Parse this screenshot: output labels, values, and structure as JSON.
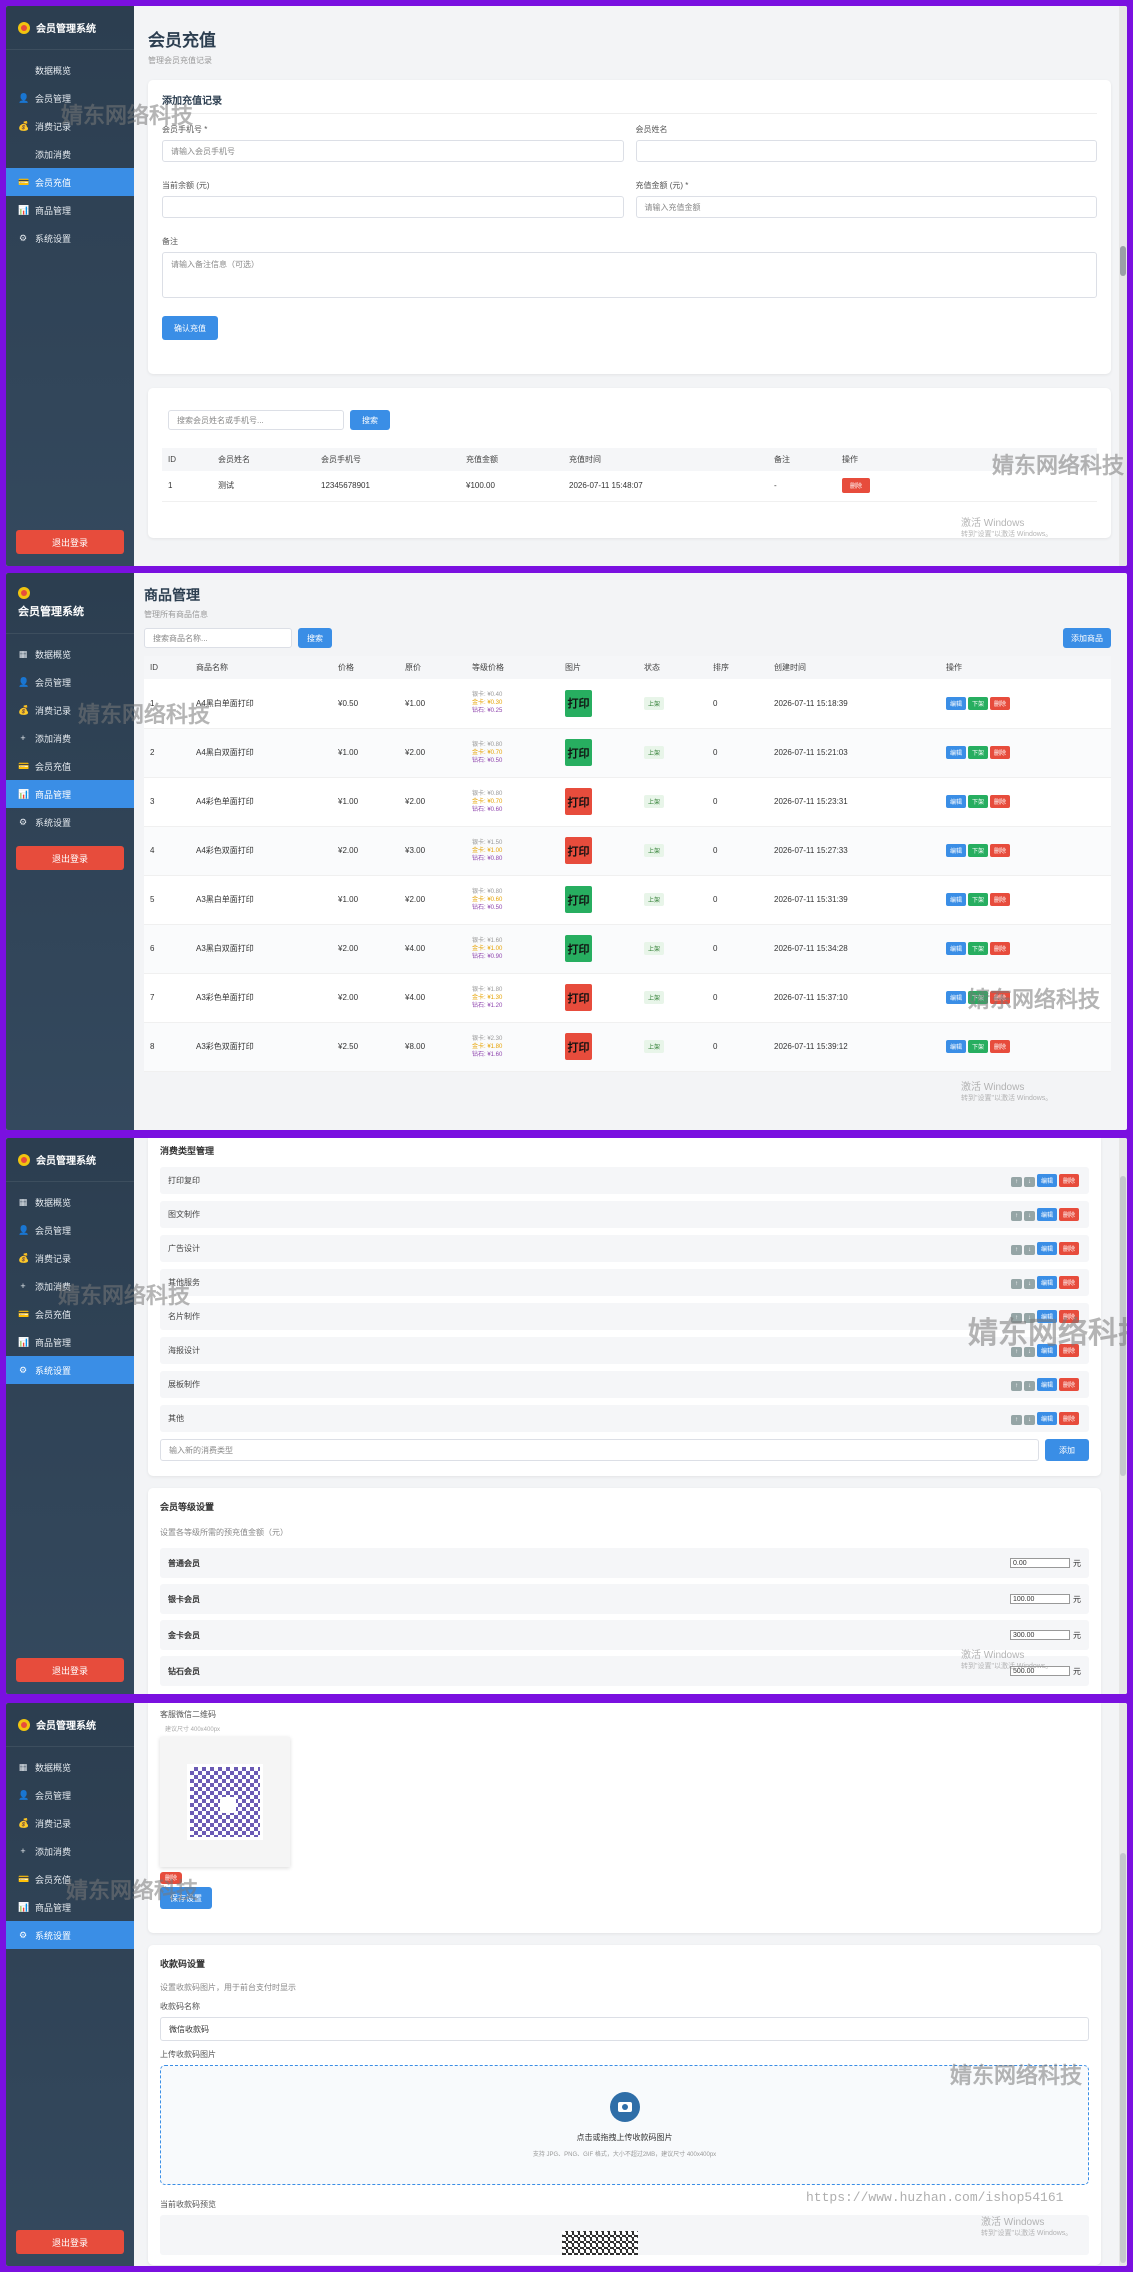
{
  "sidebar": {
    "brand": "会员管理系统",
    "logout": "退出登录",
    "items": [
      {
        "key": "dashboard",
        "label": "数据概览",
        "icon": "▦"
      },
      {
        "key": "members",
        "label": "会员管理",
        "icon": "👤"
      },
      {
        "key": "records",
        "label": "消费记录",
        "icon": "💰"
      },
      {
        "key": "add",
        "label": "添加消费",
        "icon": "+"
      },
      {
        "key": "recharge",
        "label": "会员充值",
        "icon": "💳"
      },
      {
        "key": "goods",
        "label": "商品管理",
        "icon": "📊"
      },
      {
        "key": "settings",
        "label": "系统设置",
        "icon": "⚙"
      }
    ]
  },
  "recharge_page": {
    "title": "会员充值",
    "subtitle": "管理会员充值记录",
    "form_title": "添加充值记录",
    "phone_label": "会员手机号 *",
    "phone_placeholder": "请输入会员手机号",
    "name_label": "会员姓名",
    "balance_label": "当前余额 (元)",
    "amount_label": "充值金额 (元) *",
    "amount_placeholder": "请输入充值金额",
    "note_label": "备注",
    "note_placeholder": "请输入备注信息（可选）",
    "submit": "确认充值",
    "search_placeholder": "搜索会员姓名或手机号...",
    "search_btn": "搜索",
    "columns": [
      "ID",
      "会员姓名",
      "会员手机号",
      "充值金额",
      "充值时间",
      "备注",
      "操作"
    ],
    "rows": [
      {
        "id": "1",
        "name": "测试",
        "phone": "12345678901",
        "amount": "¥100.00",
        "time": "2026-07-11 15:48:07",
        "note": "-",
        "action": "删除"
      }
    ]
  },
  "goods_page": {
    "title": "商品管理",
    "subtitle": "管理所有商品信息",
    "search_placeholder": "搜索商品名称...",
    "search_btn": "搜索",
    "add_btn": "添加商品",
    "columns": [
      "ID",
      "商品名称",
      "价格",
      "原价",
      "等级价格",
      "图片",
      "状态",
      "排序",
      "创建时间",
      "操作"
    ],
    "img_text": "打印",
    "status_text": "上架",
    "actions": [
      "编辑",
      "下架",
      "删除"
    ],
    "rows": [
      {
        "id": "1",
        "name": "A4黑白单面打印",
        "price": "¥0.50",
        "orig": "¥1.00",
        "l1": "银卡: ¥0.40",
        "l2": "金卡: ¥0.30",
        "l3": "钻石: ¥0.25",
        "sort": "0",
        "time": "2026-07-11 15:18:39"
      },
      {
        "id": "2",
        "name": "A4黑白双面打印",
        "price": "¥1.00",
        "orig": "¥2.00",
        "l1": "银卡: ¥0.80",
        "l2": "金卡: ¥0.70",
        "l3": "钻石: ¥0.50",
        "sort": "0",
        "time": "2026-07-11 15:21:03"
      },
      {
        "id": "3",
        "name": "A4彩色单面打印",
        "price": "¥1.00",
        "orig": "¥2.00",
        "l1": "银卡: ¥0.80",
        "l2": "金卡: ¥0.70",
        "l3": "钻石: ¥0.60",
        "sort": "0",
        "time": "2026-07-11 15:23:31"
      },
      {
        "id": "4",
        "name": "A4彩色双面打印",
        "price": "¥2.00",
        "orig": "¥3.00",
        "l1": "银卡: ¥1.50",
        "l2": "金卡: ¥1.00",
        "l3": "钻石: ¥0.80",
        "sort": "0",
        "time": "2026-07-11 15:27:33"
      },
      {
        "id": "5",
        "name": "A3黑白单面打印",
        "price": "¥1.00",
        "orig": "¥2.00",
        "l1": "银卡: ¥0.80",
        "l2": "金卡: ¥0.60",
        "l3": "钻石: ¥0.50",
        "sort": "0",
        "time": "2026-07-11 15:31:39"
      },
      {
        "id": "6",
        "name": "A3黑白双面打印",
        "price": "¥2.00",
        "orig": "¥4.00",
        "l1": "银卡: ¥1.60",
        "l2": "金卡: ¥1.00",
        "l3": "钻石: ¥0.90",
        "sort": "0",
        "time": "2026-07-11 15:34:28"
      },
      {
        "id": "7",
        "name": "A3彩色单面打印",
        "price": "¥2.00",
        "orig": "¥4.00",
        "l1": "银卡: ¥1.80",
        "l2": "金卡: ¥1.30",
        "l3": "钻石: ¥1.20",
        "sort": "0",
        "time": "2026-07-11 15:37:10"
      },
      {
        "id": "8",
        "name": "A3彩色双面打印",
        "price": "¥2.50",
        "orig": "¥8.00",
        "l1": "银卡: ¥2.30",
        "l2": "金卡: ¥1.80",
        "l3": "钻石: ¥1.60",
        "sort": "0",
        "time": "2026-07-11 15:39:12"
      }
    ]
  },
  "settings_page": {
    "types_title": "消费类型管理",
    "types": [
      "打印复印",
      "图文制作",
      "广告设计",
      "其他服务",
      "名片制作",
      "海报设计",
      "展板制作",
      "其他"
    ],
    "type_actions": [
      "↑",
      "↓",
      "编辑",
      "删除"
    ],
    "new_type_placeholder": "输入新的消费类型",
    "add_btn": "添加",
    "levels_title": "会员等级设置",
    "levels_desc": "设置各等级所需的预充值金额（元）",
    "unit": "元",
    "levels": [
      {
        "name": "普通会员",
        "value": "0.00"
      },
      {
        "name": "银卡会员",
        "value": "100.00"
      },
      {
        "name": "金卡会员",
        "value": "300.00"
      },
      {
        "name": "钻石会员",
        "value": "500.00"
      }
    ],
    "wechat_title": "客服微信二维码",
    "wechat_hint": "建议尺寸 400x400px",
    "delete_btn": "删除",
    "save_btn": "保存设置",
    "pay_title": "收款码设置",
    "pay_desc": "设置收款码图片，用于前台支付时显示",
    "pay_name_label": "收款码名称",
    "pay_name_value": "微信收款码",
    "upload_label": "上传收款码图片",
    "upload_text": "点击或拖拽上传收款码图片",
    "upload_hint": "支持 JPG、PNG、GIF 格式，大小不超过2MB，建议尺寸 400x400px",
    "preview_label": "当前收款码预览"
  },
  "overlay": {
    "watermark": "婧东网络科技",
    "activate": "激活 Windows",
    "activate_sub": "转到\"设置\"以激活 Windows。",
    "url": "https://www.huzhan.com/ishop54161"
  }
}
